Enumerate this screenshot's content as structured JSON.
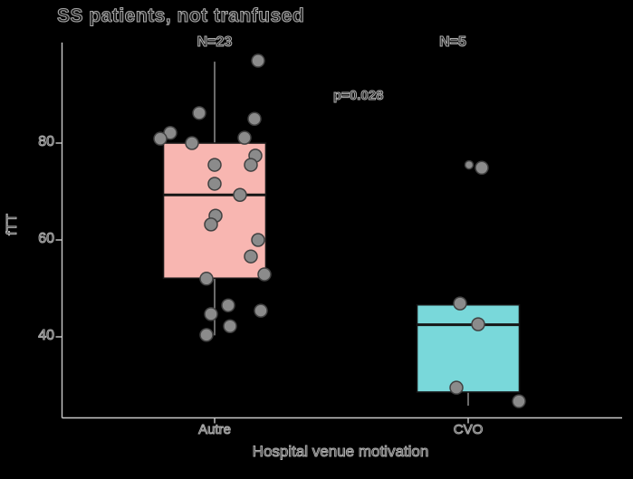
{
  "title": "SS patients, not tranfused",
  "y_axis": {
    "label": "fTT",
    "tick_labels": [
      "80",
      "60",
      "40"
    ]
  },
  "x_axis": {
    "label": "Hospital venue motivation",
    "tick_labels": [
      "Autre",
      "CVO"
    ]
  },
  "annotations": {
    "n_group1": "N=23",
    "n_group2": "N=5",
    "p_value": "p=0.028"
  },
  "colors": {
    "background": "#000000",
    "axis_line": "#c9c9c9",
    "box_fills": [
      "#f8b6b1",
      "#79d8da"
    ],
    "box_border": "#161616",
    "median_line": "#161616",
    "whisker": "#989898",
    "point_fill": "#8b8b8b",
    "point_stroke": "#414141"
  },
  "chart_data": {
    "type": "boxplot",
    "title": "SS patients, not tranfused",
    "xlabel": "Hospital venue motivation",
    "ylabel": "fTT",
    "categories": [
      "Autre",
      "CVO"
    ],
    "ylim": [
      24,
      100
    ],
    "yticks": [
      40,
      60,
      80
    ],
    "legend": "none",
    "grid": false,
    "annotations": [
      {
        "text": "N=23",
        "group": "Autre"
      },
      {
        "text": "N=5",
        "group": "CVO"
      },
      {
        "text": "p=0.028",
        "between": [
          "Autre",
          "CVO"
        ]
      }
    ],
    "groups": [
      {
        "name": "Autre",
        "n": 23,
        "box": {
          "whisker_low": 40.3,
          "q1": 52.1,
          "median": 69.3,
          "q3": 80.0,
          "whisker_high": 96.8
        },
        "values": [
          97,
          86,
          85,
          82,
          81,
          81,
          80,
          77.5,
          75.5,
          75.5,
          71.5,
          69.5,
          65,
          63,
          60,
          56.5,
          53,
          52,
          46.5,
          45.5,
          44.5,
          42,
          40.5
        ],
        "points": [
          {
            "dx": 48,
            "v": 97.0
          },
          {
            "dx": -17,
            "v": 86.2
          },
          {
            "dx": 44,
            "v": 85.0
          },
          {
            "dx": -49,
            "v": 82.1
          },
          {
            "dx": -60,
            "v": 80.9
          },
          {
            "dx": 33,
            "v": 81.1
          },
          {
            "dx": -25,
            "v": 80.0
          },
          {
            "dx": 45,
            "v": 77.4
          },
          {
            "dx": 0,
            "v": 75.5
          },
          {
            "dx": 40,
            "v": 75.5
          },
          {
            "dx": 0,
            "v": 71.6
          },
          {
            "dx": 28,
            "v": 69.3
          },
          {
            "dx": 1,
            "v": 65.0
          },
          {
            "dx": -4,
            "v": 63.2
          },
          {
            "dx": 48,
            "v": 60.0
          },
          {
            "dx": 40,
            "v": 56.6
          },
          {
            "dx": 55,
            "v": 52.9
          },
          {
            "dx": -9,
            "v": 52.0
          },
          {
            "dx": 15,
            "v": 46.5
          },
          {
            "dx": 51,
            "v": 45.4
          },
          {
            "dx": -4,
            "v": 44.7
          },
          {
            "dx": 17,
            "v": 42.2
          },
          {
            "dx": -9,
            "v": 40.4
          }
        ]
      },
      {
        "name": "CVO",
        "n": 5,
        "box": {
          "whisker_low": 25.8,
          "q1": 28.6,
          "median": 42.5,
          "q3": 46.6,
          "whisker_high": 46.6
        },
        "outliers": [
          75
        ],
        "values": [
          75,
          47,
          43,
          30,
          27
        ],
        "points": [
          {
            "dx": 1,
            "v": 75.5,
            "r": 4.5
          },
          {
            "dx": 15,
            "v": 74.9
          },
          {
            "dx": -9,
            "v": 46.9
          },
          {
            "dx": 11,
            "v": 42.6
          },
          {
            "dx": -13,
            "v": 29.5
          },
          {
            "dx": 56,
            "v": 26.7
          }
        ]
      }
    ]
  }
}
